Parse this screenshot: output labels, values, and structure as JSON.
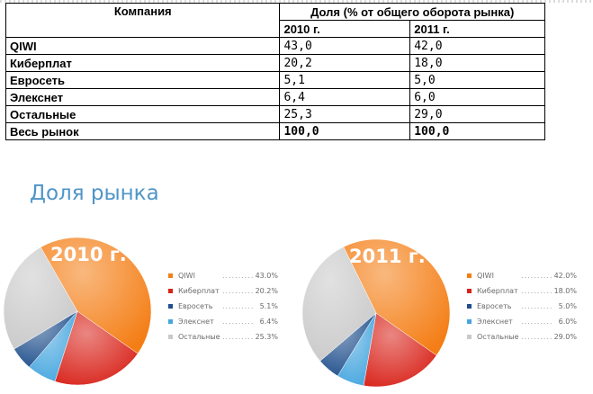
{
  "table": {
    "header_company": "Компания",
    "header_share": "Доля (% от общего оборота рынка)",
    "year_2010": "2010 г.",
    "year_2011": "2011 г.",
    "rows": [
      {
        "company": "QIWI",
        "v2010": "43,0",
        "v2011": "42,0"
      },
      {
        "company": "Киберплат",
        "v2010": "20,2",
        "v2011": "18,0"
      },
      {
        "company": "Евросеть",
        "v2010": "5,1",
        "v2011": "5,0"
      },
      {
        "company": "Элекснет",
        "v2010": "6,4",
        "v2011": "6,0"
      },
      {
        "company": "Остальные",
        "v2010": "25,3",
        "v2011": "29,0"
      },
      {
        "company": "Весь рынок",
        "v2010": "100,0",
        "v2011": "100,0"
      }
    ]
  },
  "market_title": "Доля рынка",
  "colors": {
    "QIWI": "#f47d14",
    "Киберплат": "#d8231a",
    "Евросеть": "#1f4f8c",
    "Элекснет": "#45a6df",
    "Остальные": "#c9c9c9",
    "title": "#4f95c9"
  },
  "chart_data": [
    {
      "type": "pie",
      "title": "2010 г.",
      "legend_position": "right",
      "slices": [
        {
          "label": "QIWI",
          "value": 43.0,
          "value_label": "43.0%"
        },
        {
          "label": "Киберплат",
          "value": 20.2,
          "value_label": "20.2%"
        },
        {
          "label": "Евросеть",
          "value": 5.1,
          "value_label": "5.1%"
        },
        {
          "label": "Элекснет",
          "value": 6.4,
          "value_label": "6.4%"
        },
        {
          "label": "Остальные",
          "value": 25.3,
          "value_label": "25.3%"
        }
      ]
    },
    {
      "type": "pie",
      "title": "2011 г.",
      "legend_position": "right",
      "slices": [
        {
          "label": "QIWI",
          "value": 42.0,
          "value_label": "42.0%"
        },
        {
          "label": "Киберплат",
          "value": 18.0,
          "value_label": "18.0%"
        },
        {
          "label": "Евросеть",
          "value": 5.0,
          "value_label": "5.0%"
        },
        {
          "label": "Элекснет",
          "value": 6.0,
          "value_label": "6.0%"
        },
        {
          "label": "Остальные",
          "value": 29.0,
          "value_label": "29.0%"
        }
      ]
    }
  ]
}
